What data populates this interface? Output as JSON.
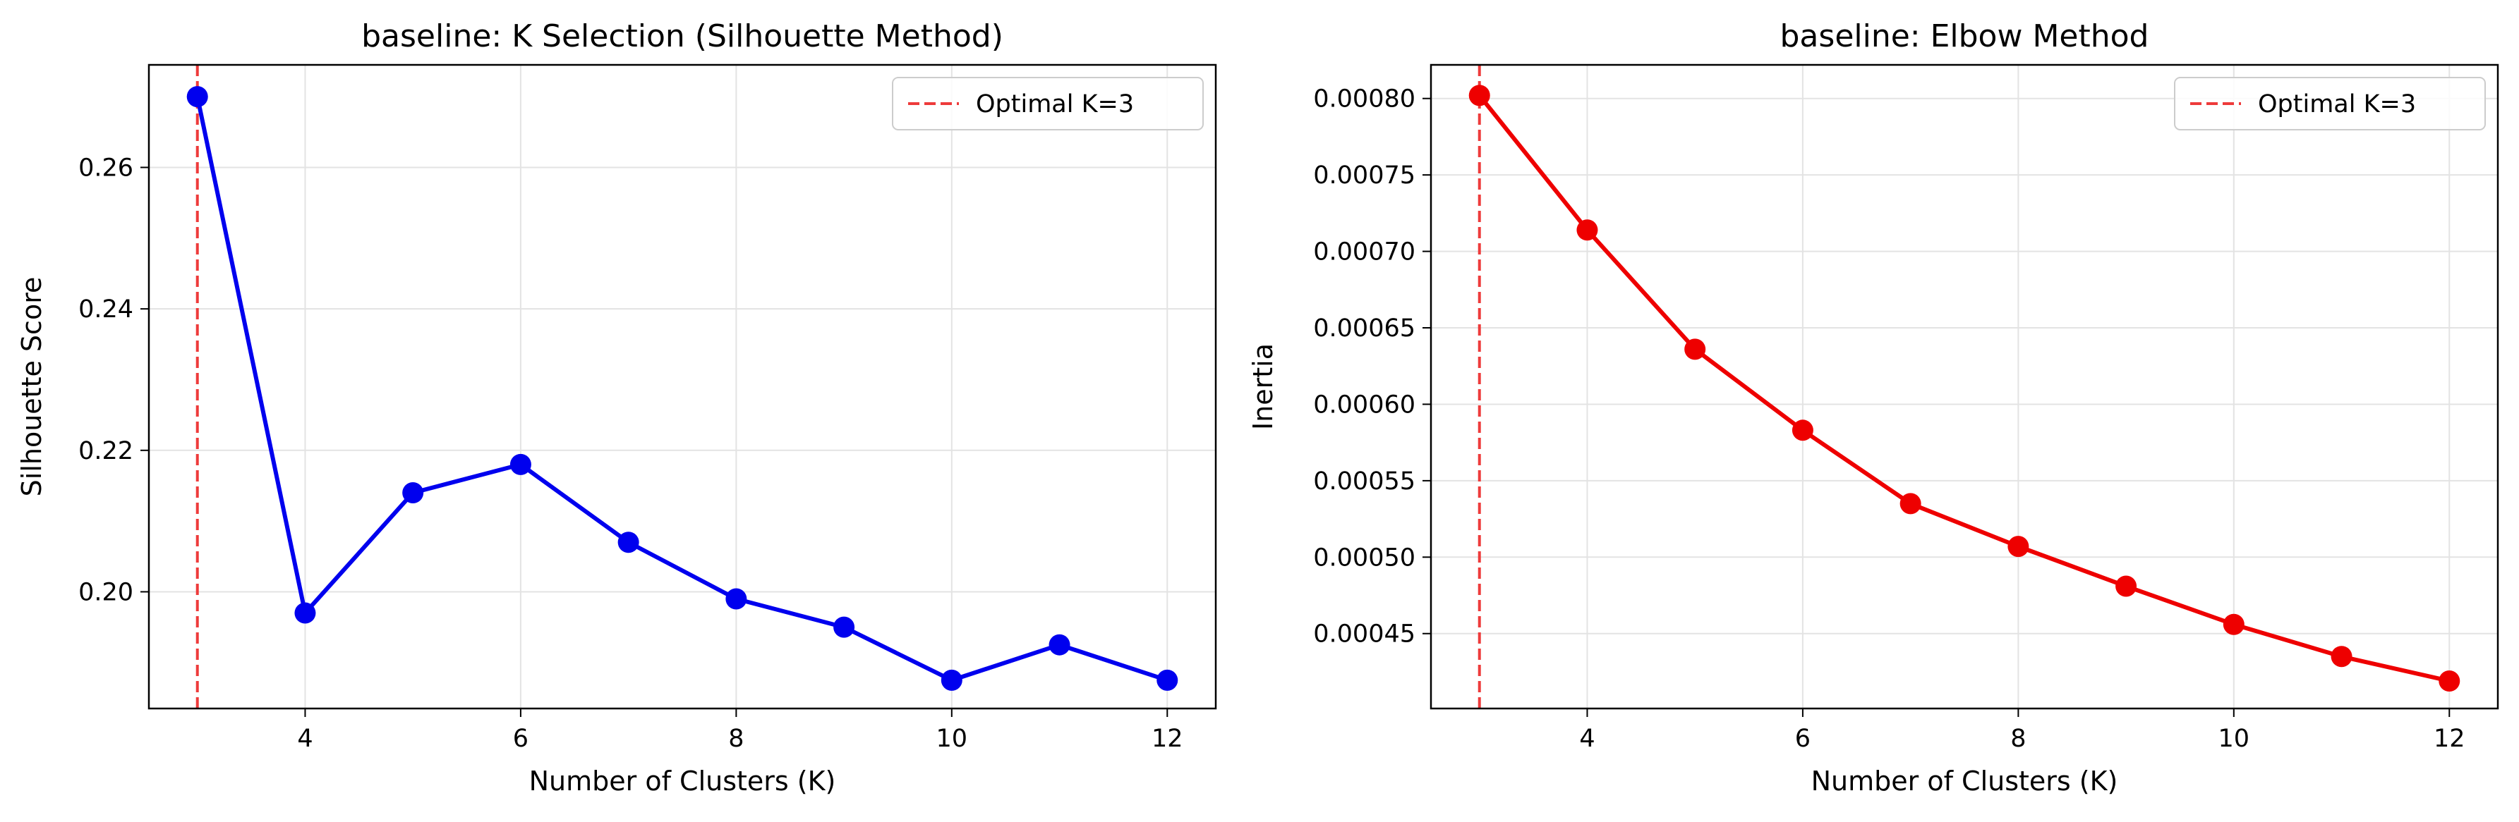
{
  "chart_data": [
    {
      "type": "line",
      "title": "baseline: K Selection (Silhouette Method)",
      "xlabel": "Number of Clusters (K)",
      "ylabel": "Silhouette Score",
      "xlim": [
        2.55,
        12.45
      ],
      "ylim": [
        0.1835,
        0.2745
      ],
      "x_ticks": [
        4,
        6,
        8,
        10,
        12
      ],
      "x_tick_labels": [
        "4",
        "6",
        "8",
        "10",
        "12"
      ],
      "y_ticks": [
        0.2,
        0.22,
        0.24,
        0.26
      ],
      "y_tick_labels": [
        "0.20",
        "0.22",
        "0.24",
        "0.26"
      ],
      "grid": true,
      "legend_position": "top-right",
      "series": [
        {
          "color": "#0000ee",
          "x": [
            3,
            4,
            5,
            6,
            7,
            8,
            9,
            10,
            11,
            12
          ],
          "values": [
            0.27,
            0.197,
            0.214,
            0.218,
            0.207,
            0.199,
            0.195,
            0.1875,
            0.1925,
            0.1875
          ]
        }
      ],
      "reference_line": {
        "label": "Optimal K=3",
        "x": 3,
        "color": "#ee3b3b",
        "style": "dashed"
      }
    },
    {
      "type": "line",
      "title": "baseline: Elbow Method",
      "xlabel": "Number of Clusters (K)",
      "ylabel": "Inertia",
      "xlim": [
        2.55,
        12.45
      ],
      "ylim": [
        0.000401,
        0.000822
      ],
      "x_ticks": [
        4,
        6,
        8,
        10,
        12
      ],
      "x_tick_labels": [
        "4",
        "6",
        "8",
        "10",
        "12"
      ],
      "y_ticks": [
        0.00045,
        0.0005,
        0.00055,
        0.0006,
        0.00065,
        0.0007,
        0.00075,
        0.0008
      ],
      "y_tick_labels": [
        "0.00045",
        "0.00050",
        "0.00055",
        "0.00060",
        "0.00065",
        "0.00070",
        "0.00075",
        "0.00080"
      ],
      "grid": true,
      "legend_position": "top-right",
      "series": [
        {
          "color": "#ee0000",
          "x": [
            3,
            4,
            5,
            6,
            7,
            8,
            9,
            10,
            11,
            12
          ],
          "values": [
            0.000802,
            0.000714,
            0.000636,
            0.000583,
            0.000535,
            0.000507,
            0.000481,
            0.000456,
            0.000435,
            0.000419
          ]
        }
      ],
      "reference_line": {
        "label": "Optimal K=3",
        "x": 3,
        "color": "#ee3b3b",
        "style": "dashed"
      }
    }
  ]
}
